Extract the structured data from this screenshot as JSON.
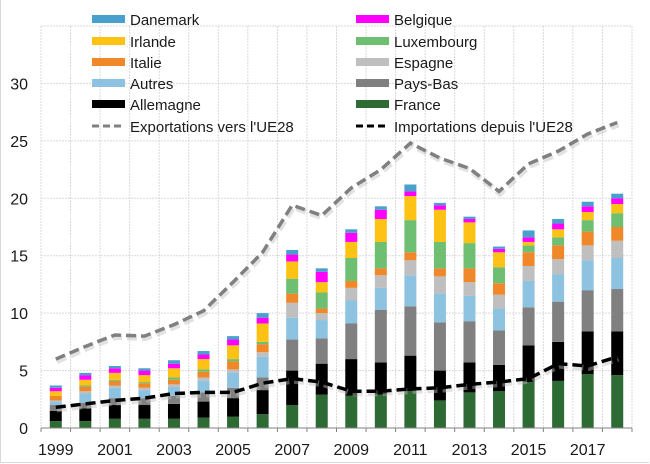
{
  "chart_data": {
    "type": "bar",
    "stacked": true,
    "title": "",
    "xlabel": "",
    "ylabel": "",
    "ylim": [
      0,
      35
    ],
    "yticks": [
      0,
      5,
      10,
      15,
      20,
      25,
      30
    ],
    "grid": true,
    "legend_position": "top",
    "categories": [
      "1999",
      "2000",
      "2001",
      "2002",
      "2003",
      "2004",
      "2005",
      "2006",
      "2007",
      "2008",
      "2009",
      "2010",
      "2011",
      "2012",
      "2013",
      "2014",
      "2015",
      "2016",
      "2017",
      "2018"
    ],
    "xtick_labels": [
      "1999",
      "",
      "2001",
      "",
      "2003",
      "",
      "2005",
      "",
      "2007",
      "",
      "2009",
      "",
      "2011",
      "",
      "2013",
      "",
      "2015",
      "",
      "2017",
      ""
    ],
    "series": [
      {
        "name": "France",
        "color": "#2e6b34",
        "values": [
          0.6,
          0.6,
          0.8,
          0.8,
          0.8,
          0.9,
          1.0,
          1.2,
          2.0,
          2.9,
          2.8,
          2.9,
          3.2,
          2.4,
          3.1,
          3.2,
          4.0,
          4.1,
          4.7,
          4.6
        ]
      },
      {
        "name": "Allemagne",
        "color": "#000000",
        "values": [
          0.9,
          1.1,
          1.2,
          1.2,
          1.3,
          1.4,
          1.6,
          2.1,
          3.0,
          2.7,
          3.2,
          2.8,
          3.1,
          2.6,
          2.6,
          2.3,
          3.2,
          3.4,
          3.7,
          3.8
        ]
      },
      {
        "name": "Pays-Bas",
        "color": "#808080",
        "values": [
          0.5,
          0.5,
          0.6,
          0.6,
          0.7,
          0.8,
          0.9,
          1.1,
          2.7,
          2.2,
          3.1,
          4.6,
          4.3,
          4.2,
          3.6,
          3.0,
          3.3,
          3.5,
          3.6,
          3.7
        ]
      },
      {
        "name": "Autres",
        "color": "#8dc3e0",
        "values": [
          0.3,
          0.8,
          0.9,
          0.7,
          0.8,
          1.0,
          1.3,
          1.8,
          1.9,
          1.6,
          2.0,
          1.9,
          2.7,
          2.5,
          2.2,
          1.9,
          2.3,
          2.4,
          2.6,
          2.7
        ]
      },
      {
        "name": "Espagne",
        "color": "#bfbfbf",
        "values": [
          0.1,
          0.2,
          0.2,
          0.2,
          0.2,
          0.3,
          0.3,
          0.4,
          1.3,
          0.6,
          1.1,
          1.1,
          1.3,
          1.5,
          1.2,
          1.2,
          1.3,
          1.3,
          1.3,
          1.5
        ]
      },
      {
        "name": "Italie",
        "color": "#f0882a",
        "values": [
          0.4,
          0.4,
          0.4,
          0.4,
          0.4,
          0.5,
          0.7,
          0.7,
          0.8,
          0.4,
          0.6,
          0.6,
          0.7,
          0.7,
          1.2,
          1.0,
          1.2,
          1.2,
          1.2,
          1.2
        ]
      },
      {
        "name": "Luxembourg",
        "color": "#6fbf73",
        "values": [
          0.0,
          0.1,
          0.1,
          0.1,
          0.2,
          0.2,
          0.2,
          0.2,
          1.3,
          1.4,
          2.0,
          2.3,
          2.8,
          2.3,
          2.2,
          1.4,
          0.6,
          0.7,
          1.0,
          1.2
        ]
      },
      {
        "name": "Irlande",
        "color": "#fdc213",
        "values": [
          0.4,
          0.5,
          0.6,
          0.6,
          0.8,
          0.9,
          1.2,
          1.6,
          1.5,
          0.9,
          1.4,
          2.0,
          2.1,
          2.8,
          1.8,
          1.3,
          0.3,
          0.7,
          0.7,
          0.8
        ]
      },
      {
        "name": "Belgique",
        "color": "#ff00ff",
        "values": [
          0.3,
          0.4,
          0.4,
          0.4,
          0.4,
          0.4,
          0.5,
          0.5,
          0.6,
          0.9,
          0.8,
          0.8,
          0.4,
          0.4,
          0.3,
          0.3,
          0.4,
          0.5,
          0.5,
          0.5
        ]
      },
      {
        "name": "Danemark",
        "color": "#4aa0cc",
        "values": [
          0.2,
          0.2,
          0.2,
          0.2,
          0.3,
          0.3,
          0.3,
          0.4,
          0.4,
          0.3,
          0.3,
          0.3,
          0.6,
          0.2,
          0.2,
          0.2,
          0.6,
          0.4,
          0.4,
          0.4
        ]
      }
    ],
    "lines": [
      {
        "name": "Exportations vers l'UE28",
        "color": "#808080",
        "dash": true,
        "values": [
          6.0,
          7.1,
          8.1,
          8.0,
          9.0,
          10.2,
          12.7,
          15.3,
          19.4,
          18.5,
          20.9,
          22.5,
          24.8,
          23.5,
          22.6,
          20.6,
          23.0,
          24.1,
          25.6,
          26.6
        ]
      },
      {
        "name": "Importations depuis l'UE28",
        "color": "#000000",
        "dash": true,
        "values": [
          1.8,
          2.1,
          2.4,
          2.6,
          3.0,
          3.1,
          3.1,
          3.9,
          4.3,
          4.0,
          3.2,
          3.2,
          3.4,
          3.5,
          3.8,
          4.0,
          4.3,
          5.6,
          5.4,
          6.2
        ]
      }
    ],
    "legend": {
      "left": [
        "Danemark",
        "Irlande",
        "Italie",
        "Autres",
        "Allemagne",
        "Exportations vers l'UE28"
      ],
      "right": [
        "Belgique",
        "Luxembourg",
        "Espagne",
        "Pays-Bas",
        "France",
        "Importations depuis l'UE28"
      ]
    }
  }
}
